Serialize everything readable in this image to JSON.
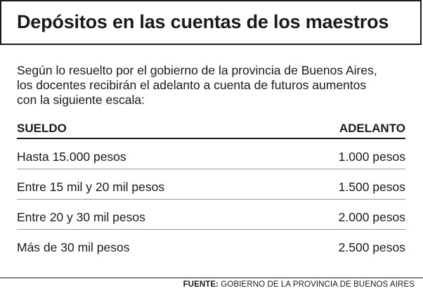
{
  "title": "Depósitos en las cuentas de los maestros",
  "intro": {
    "lines": [
      "Según lo resuelto por el gobierno de la provincia de Buenos Aires,",
      "los docentes recibirán el adelanto a cuenta de futuros aumentos",
      "con la siguiente escala:"
    ]
  },
  "table": {
    "headers": [
      "SUELDO",
      "ADELANTO"
    ],
    "rows": [
      [
        "Hasta 15.000 pesos",
        "1.000 pesos"
      ],
      [
        "Entre 15 mil y 20 mil pesos",
        "1.500 pesos"
      ],
      [
        "Entre 20 y 30 mil pesos",
        "2.000 pesos"
      ],
      [
        "Más de 30 mil pesos",
        "2.500 pesos"
      ]
    ]
  },
  "source": {
    "label": "FUENTE:",
    "text": " GOBIERNO DE LA PROVINCIA DE BUENOS AIRES"
  }
}
